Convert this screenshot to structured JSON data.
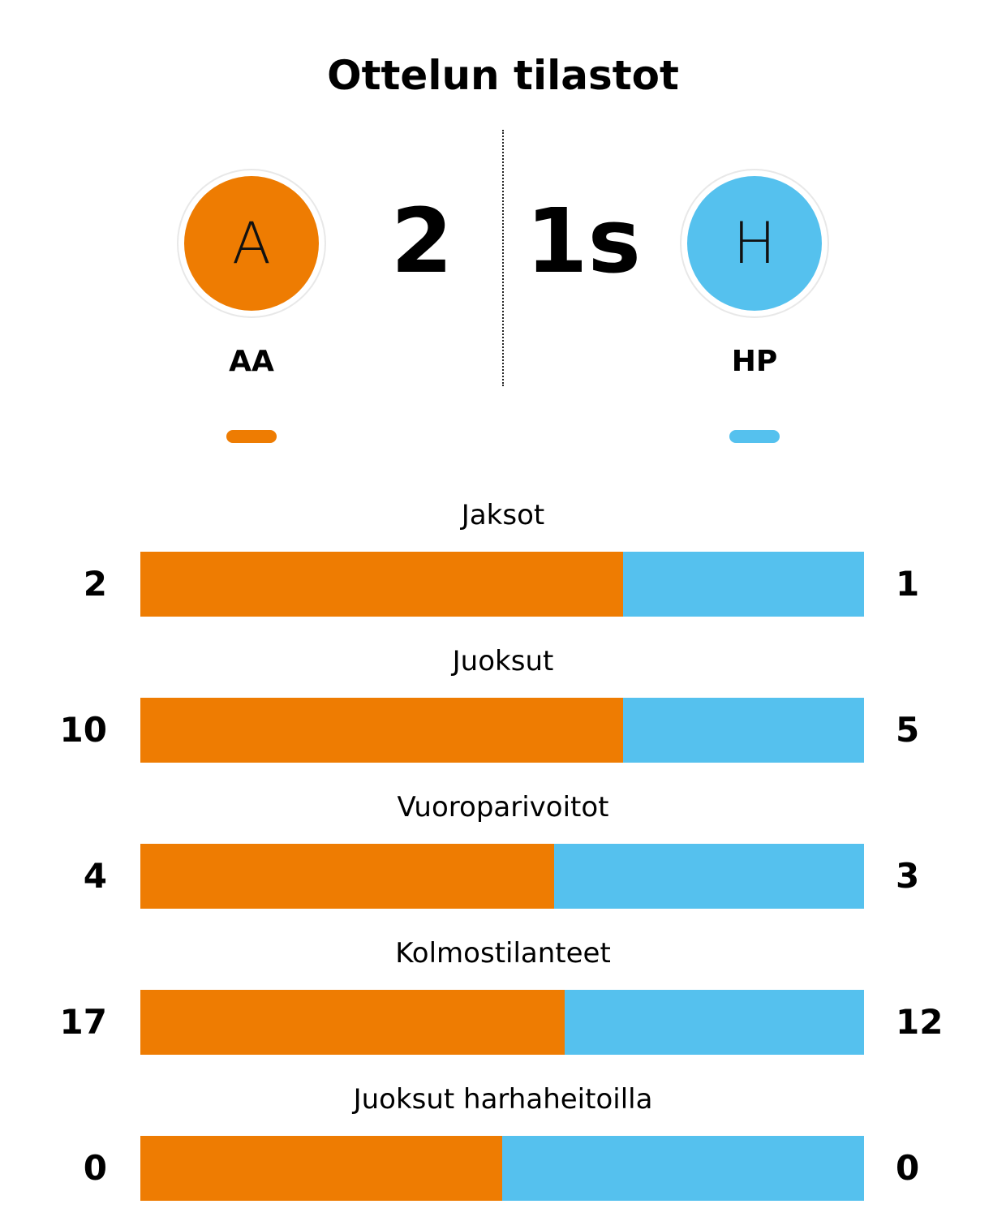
{
  "title": "Ottelun tilastot",
  "colors": {
    "home": "#EE7C02",
    "away": "#55C1EE"
  },
  "home": {
    "logo_letter": "A",
    "abbr": "AA",
    "score": "2"
  },
  "away": {
    "logo_letter": "H",
    "abbr": "HP",
    "score": "1s"
  },
  "stats": [
    {
      "label": "Jaksot",
      "home": "2",
      "away": "1"
    },
    {
      "label": "Juoksut",
      "home": "10",
      "away": "5"
    },
    {
      "label": "Vuoroparivoitot",
      "home": "4",
      "away": "3"
    },
    {
      "label": "Kolmostilanteet",
      "home": "17",
      "away": "12"
    },
    {
      "label": "Juoksut harhaheitoilla",
      "home": "0",
      "away": "0"
    }
  ],
  "chart_data": {
    "type": "bar",
    "stacked": true,
    "orientation": "horizontal",
    "categories": [
      "Jaksot",
      "Juoksut",
      "Vuoroparivoitot",
      "Kolmostilanteet",
      "Juoksut harhaheitoilla"
    ],
    "series": [
      {
        "name": "AA",
        "values": [
          2,
          10,
          4,
          17,
          0
        ]
      },
      {
        "name": "HP",
        "values": [
          1,
          5,
          3,
          12,
          0
        ]
      }
    ]
  }
}
